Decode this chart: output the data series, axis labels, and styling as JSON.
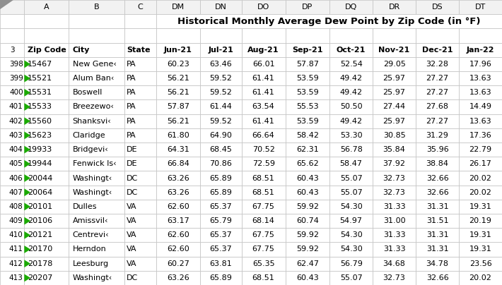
{
  "title": "Historical Monthly Average Dew Point by Zip Code (in °F)",
  "spreadsheet_col_letters": [
    "",
    "A",
    "B",
    "C",
    "DM",
    "DN",
    "DO",
    "DP",
    "DQ",
    "DR",
    "DS",
    "DT"
  ],
  "col_headers": [
    "Zip Code",
    "City",
    "State",
    "Jun-21",
    "Jul-21",
    "Aug-21",
    "Sep-21",
    "Oct-21",
    "Nov-21",
    "Dec-21",
    "Jan-22"
  ],
  "row_numbers": [
    398,
    399,
    400,
    401,
    402,
    403,
    404,
    405,
    406,
    407,
    408,
    409,
    410,
    411,
    412,
    413
  ],
  "rows": [
    [
      "15467",
      "New Gene‹",
      "PA",
      "60.23",
      "63.46",
      "66.01",
      "57.87",
      "52.54",
      "29.05",
      "32.28",
      "17.96"
    ],
    [
      "15521",
      "Alum Ban‹",
      "PA",
      "56.21",
      "59.52",
      "61.41",
      "53.59",
      "49.42",
      "25.97",
      "27.27",
      "13.63"
    ],
    [
      "15531",
      "Boswell",
      "PA",
      "56.21",
      "59.52",
      "61.41",
      "53.59",
      "49.42",
      "25.97",
      "27.27",
      "13.63"
    ],
    [
      "15533",
      "Breezewo‹",
      "PA",
      "57.87",
      "61.44",
      "63.54",
      "55.53",
      "50.50",
      "27.44",
      "27.68",
      "14.49"
    ],
    [
      "15560",
      "Shanksvi‹",
      "PA",
      "56.21",
      "59.52",
      "61.41",
      "53.59",
      "49.42",
      "25.97",
      "27.27",
      "13.63"
    ],
    [
      "15623",
      "Claridge",
      "PA",
      "61.80",
      "64.90",
      "66.64",
      "58.42",
      "53.30",
      "30.85",
      "31.29",
      "17.36"
    ],
    [
      "19933",
      "Bridgevi‹",
      "DE",
      "64.31",
      "68.45",
      "70.52",
      "62.31",
      "56.78",
      "35.84",
      "35.96",
      "22.79"
    ],
    [
      "19944",
      "Fenwick Is‹",
      "DE",
      "66.84",
      "70.86",
      "72.59",
      "65.62",
      "58.47",
      "37.92",
      "38.84",
      "26.17"
    ],
    [
      "20044",
      "Washingt‹",
      "DC",
      "63.26",
      "65.89",
      "68.51",
      "60.43",
      "55.07",
      "32.73",
      "32.66",
      "20.02"
    ],
    [
      "20064",
      "Washingt‹",
      "DC",
      "63.26",
      "65.89",
      "68.51",
      "60.43",
      "55.07",
      "32.73",
      "32.66",
      "20.02"
    ],
    [
      "20101",
      "Dulles",
      "VA",
      "62.60",
      "65.37",
      "67.75",
      "59.92",
      "54.30",
      "31.33",
      "31.31",
      "19.31"
    ],
    [
      "20106",
      "Amissvil‹",
      "VA",
      "63.17",
      "65.79",
      "68.14",
      "60.74",
      "54.97",
      "31.00",
      "31.51",
      "20.19"
    ],
    [
      "20121",
      "Centrevi‹",
      "VA",
      "62.60",
      "65.37",
      "67.75",
      "59.92",
      "54.30",
      "31.33",
      "31.31",
      "19.31"
    ],
    [
      "20170",
      "Herndon",
      "VA",
      "62.60",
      "65.37",
      "67.75",
      "59.92",
      "54.30",
      "31.33",
      "31.31",
      "19.31"
    ],
    [
      "20178",
      "Leesburg",
      "VA",
      "60.27",
      "63.81",
      "65.35",
      "62.47",
      "56.79",
      "34.68",
      "34.78",
      "23.56"
    ],
    [
      "20207",
      "Washingt‹",
      "DC",
      "63.26",
      "65.89",
      "68.51",
      "60.43",
      "55.07",
      "32.73",
      "32.66",
      "20.02"
    ]
  ],
  "col_aligns": [
    "left",
    "left",
    "left",
    "center",
    "center",
    "center",
    "center",
    "center",
    "center",
    "center",
    "center"
  ],
  "bg_white": "#ffffff",
  "bg_header": "#f2f2f2",
  "border_color": "#c0c0c0",
  "text_color": "#000000",
  "green_color": "#1aaa00",
  "title_fontsize": 9.5,
  "header_fontsize": 8.0,
  "data_fontsize": 8.0,
  "rownum_fontsize": 7.5,
  "col_letter_fontsize": 8.0
}
